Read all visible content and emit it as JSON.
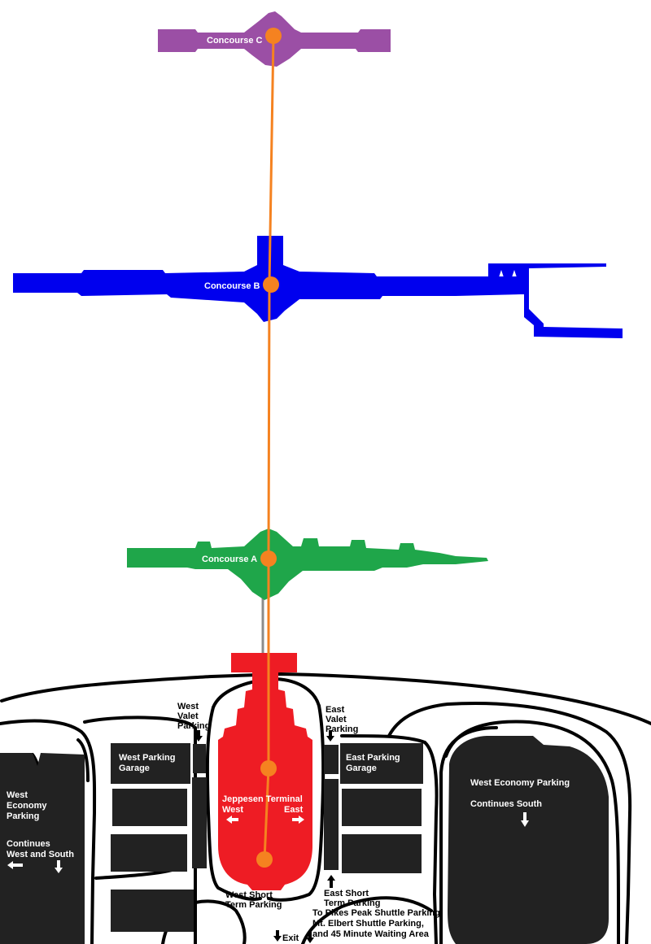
{
  "colors": {
    "concourse_c": "#9b4fa5",
    "concourse_b": "#0000ee",
    "concourse_a": "#1fa64a",
    "terminal": "#ee1c24",
    "train": "#f58220",
    "parking": "#222222",
    "roads": "#000000",
    "connector": "#8c8c8c"
  },
  "concourses": {
    "c": "Concourse C",
    "b": "Concourse B",
    "a": "Concourse A"
  },
  "terminal": {
    "name": "Jeppesen Terminal",
    "west": "West",
    "east": "East"
  },
  "parking": {
    "west_valet": [
      "West",
      "Valet",
      "Parking"
    ],
    "east_valet": [
      "East",
      "Valet",
      "Parking"
    ],
    "west_garage": [
      "West Parking",
      "Garage"
    ],
    "east_garage": [
      "East Parking",
      "Garage"
    ],
    "west_economy": [
      "West",
      "Economy",
      "Parking"
    ],
    "west_continues": [
      "Continues",
      "West and South"
    ],
    "east_economy": "West Economy Parking",
    "east_continues": "Continues South",
    "west_short": [
      "West Short",
      "Term Parking"
    ],
    "east_short": [
      "East Short",
      "Term Parking"
    ],
    "shuttle": [
      "To Pikes Peak Shuttle Parking,",
      "Mt. Elbert Shuttle Parking,",
      "and 45 Minute Waiting Area"
    ],
    "exit": "Exit"
  },
  "train_stops": [
    "concourse-c",
    "concourse-b",
    "concourse-a",
    "terminal-north",
    "terminal-south"
  ]
}
